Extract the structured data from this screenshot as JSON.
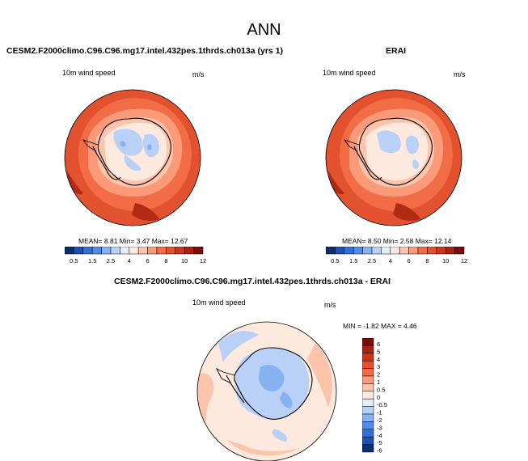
{
  "main_title": "ANN",
  "panels": [
    {
      "title": "CESM2.F2000climo.C96.C96.mg17.intel.432pes.1thrds.ch013a (yrs 1)",
      "variable": "10m wind speed",
      "units": "m/s",
      "stats": "MEAN=  8.81  Min=  3.47  Max=  12.67"
    },
    {
      "title": "ERAI",
      "variable": "10m wind speed",
      "units": "m/s",
      "stats": "MEAN=  8.50  Min=  2.58  Max=  12.14"
    },
    {
      "title": "CESM2.F2000climo.C96.C96.mg17.intel.432pes.1thrds.ch013a - ERAI",
      "variable": "10m wind speed",
      "units": "m/s",
      "stats": "MIN = -1.82 MAX =  4.46"
    }
  ],
  "colorbar_seq": {
    "labels": [
      "0.5",
      "1.5",
      "2.5",
      "4",
      "6",
      "8",
      "10",
      "12"
    ],
    "colors": [
      "#08306b",
      "#1f4fb4",
      "#2f6fd8",
      "#4f8ee8",
      "#86b2f2",
      "#b9d0f7",
      "#e4edfb",
      "#fde9de",
      "#fcc4aa",
      "#fb9a78",
      "#f26c45",
      "#e3502b",
      "#c93818",
      "#a82211",
      "#7a0d08"
    ]
  },
  "colorbar_div": {
    "labels": [
      "6",
      "5",
      "4",
      "3",
      "2",
      "1",
      "0.5",
      "0",
      "-0.5",
      "-1",
      "-2",
      "-3",
      "-4",
      "-5",
      "-6"
    ],
    "colors": [
      "#7a0d08",
      "#a82211",
      "#c93818",
      "#e3502b",
      "#f26c45",
      "#fb9a78",
      "#fcc4aa",
      "#fde9de",
      "#e4edfb",
      "#b9d0f7",
      "#86b2f2",
      "#4f8ee8",
      "#2f6fd8",
      "#1f4fb4",
      "#08306b"
    ]
  },
  "map_colors": {
    "ocean_outer": "#e3522e",
    "ocean_mid": "#f26c45",
    "ocean_inner": "#fb9a78",
    "coast": "#fcc4aa",
    "land_pale": "#fde9de",
    "land_blue": "#b9d0f7",
    "land_mid_blue": "#86b2f2",
    "dark_red": "#b22a14",
    "diff_bg": "#fde9de",
    "diff_ring": "#fcc4aa",
    "diff_blue": "#b9d0f7",
    "diff_blue2": "#86b2f2"
  }
}
